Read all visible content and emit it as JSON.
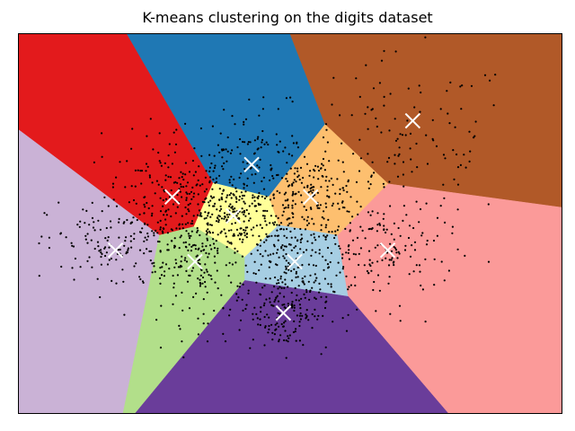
{
  "chart_data": {
    "type": "scatter",
    "title": "K-means clustering on the digits dataset",
    "xlabel": "",
    "ylabel": "",
    "xlim": [
      -6.0,
      6.0
    ],
    "ylim": [
      -5.6,
      4.4
    ],
    "show_ticks": false,
    "grid": false,
    "legend": "none",
    "region_colors": [
      "#e31a1c",
      "#1f78b4",
      "#b15928",
      "#fdbf6f",
      "#ffff99",
      "#cab2d6",
      "#b2df8a",
      "#a6cee3",
      "#fb9a99",
      "#6a3d9a"
    ],
    "centroid_color": "#ffffff",
    "point_color": "#000000",
    "centroids": [
      {
        "x": -2.6,
        "y": 0.1,
        "region": 0
      },
      {
        "x": -0.85,
        "y": 0.95,
        "region": 1
      },
      {
        "x": 2.7,
        "y": 2.1,
        "region": 2
      },
      {
        "x": 0.45,
        "y": 0.1,
        "region": 3
      },
      {
        "x": -1.25,
        "y": -0.4,
        "region": 4
      },
      {
        "x": -3.85,
        "y": -1.3,
        "region": 5
      },
      {
        "x": -2.1,
        "y": -1.6,
        "region": 6
      },
      {
        "x": 0.1,
        "y": -1.6,
        "region": 7
      },
      {
        "x": 2.15,
        "y": -1.3,
        "region": 8
      },
      {
        "x": -0.15,
        "y": -2.95,
        "region": 9
      }
    ],
    "cluster_spread": [
      {
        "cx": -2.6,
        "cy": 0.15,
        "sx": 0.75,
        "sy": 0.8,
        "n": 170
      },
      {
        "cx": -0.85,
        "cy": 0.85,
        "sx": 0.95,
        "sy": 0.8,
        "n": 170
      },
      {
        "cx": 2.6,
        "cy": 1.6,
        "sx": 1.2,
        "sy": 1.1,
        "n": 110
      },
      {
        "cx": 0.45,
        "cy": 0.1,
        "sx": 0.55,
        "sy": 0.5,
        "n": 150
      },
      {
        "cx": -1.25,
        "cy": -0.4,
        "sx": 0.55,
        "sy": 0.55,
        "n": 190
      },
      {
        "cx": -3.85,
        "cy": -1.2,
        "sx": 0.75,
        "sy": 0.6,
        "n": 130
      },
      {
        "cx": -2.1,
        "cy": -1.6,
        "sx": 0.55,
        "sy": 0.8,
        "n": 170
      },
      {
        "cx": 0.1,
        "cy": -1.5,
        "sx": 0.6,
        "sy": 0.55,
        "n": 150
      },
      {
        "cx": 2.15,
        "cy": -1.3,
        "sx": 0.75,
        "sy": 0.75,
        "n": 150
      },
      {
        "cx": -0.15,
        "cy": -2.85,
        "sx": 0.5,
        "sy": 0.55,
        "n": 180
      }
    ]
  }
}
